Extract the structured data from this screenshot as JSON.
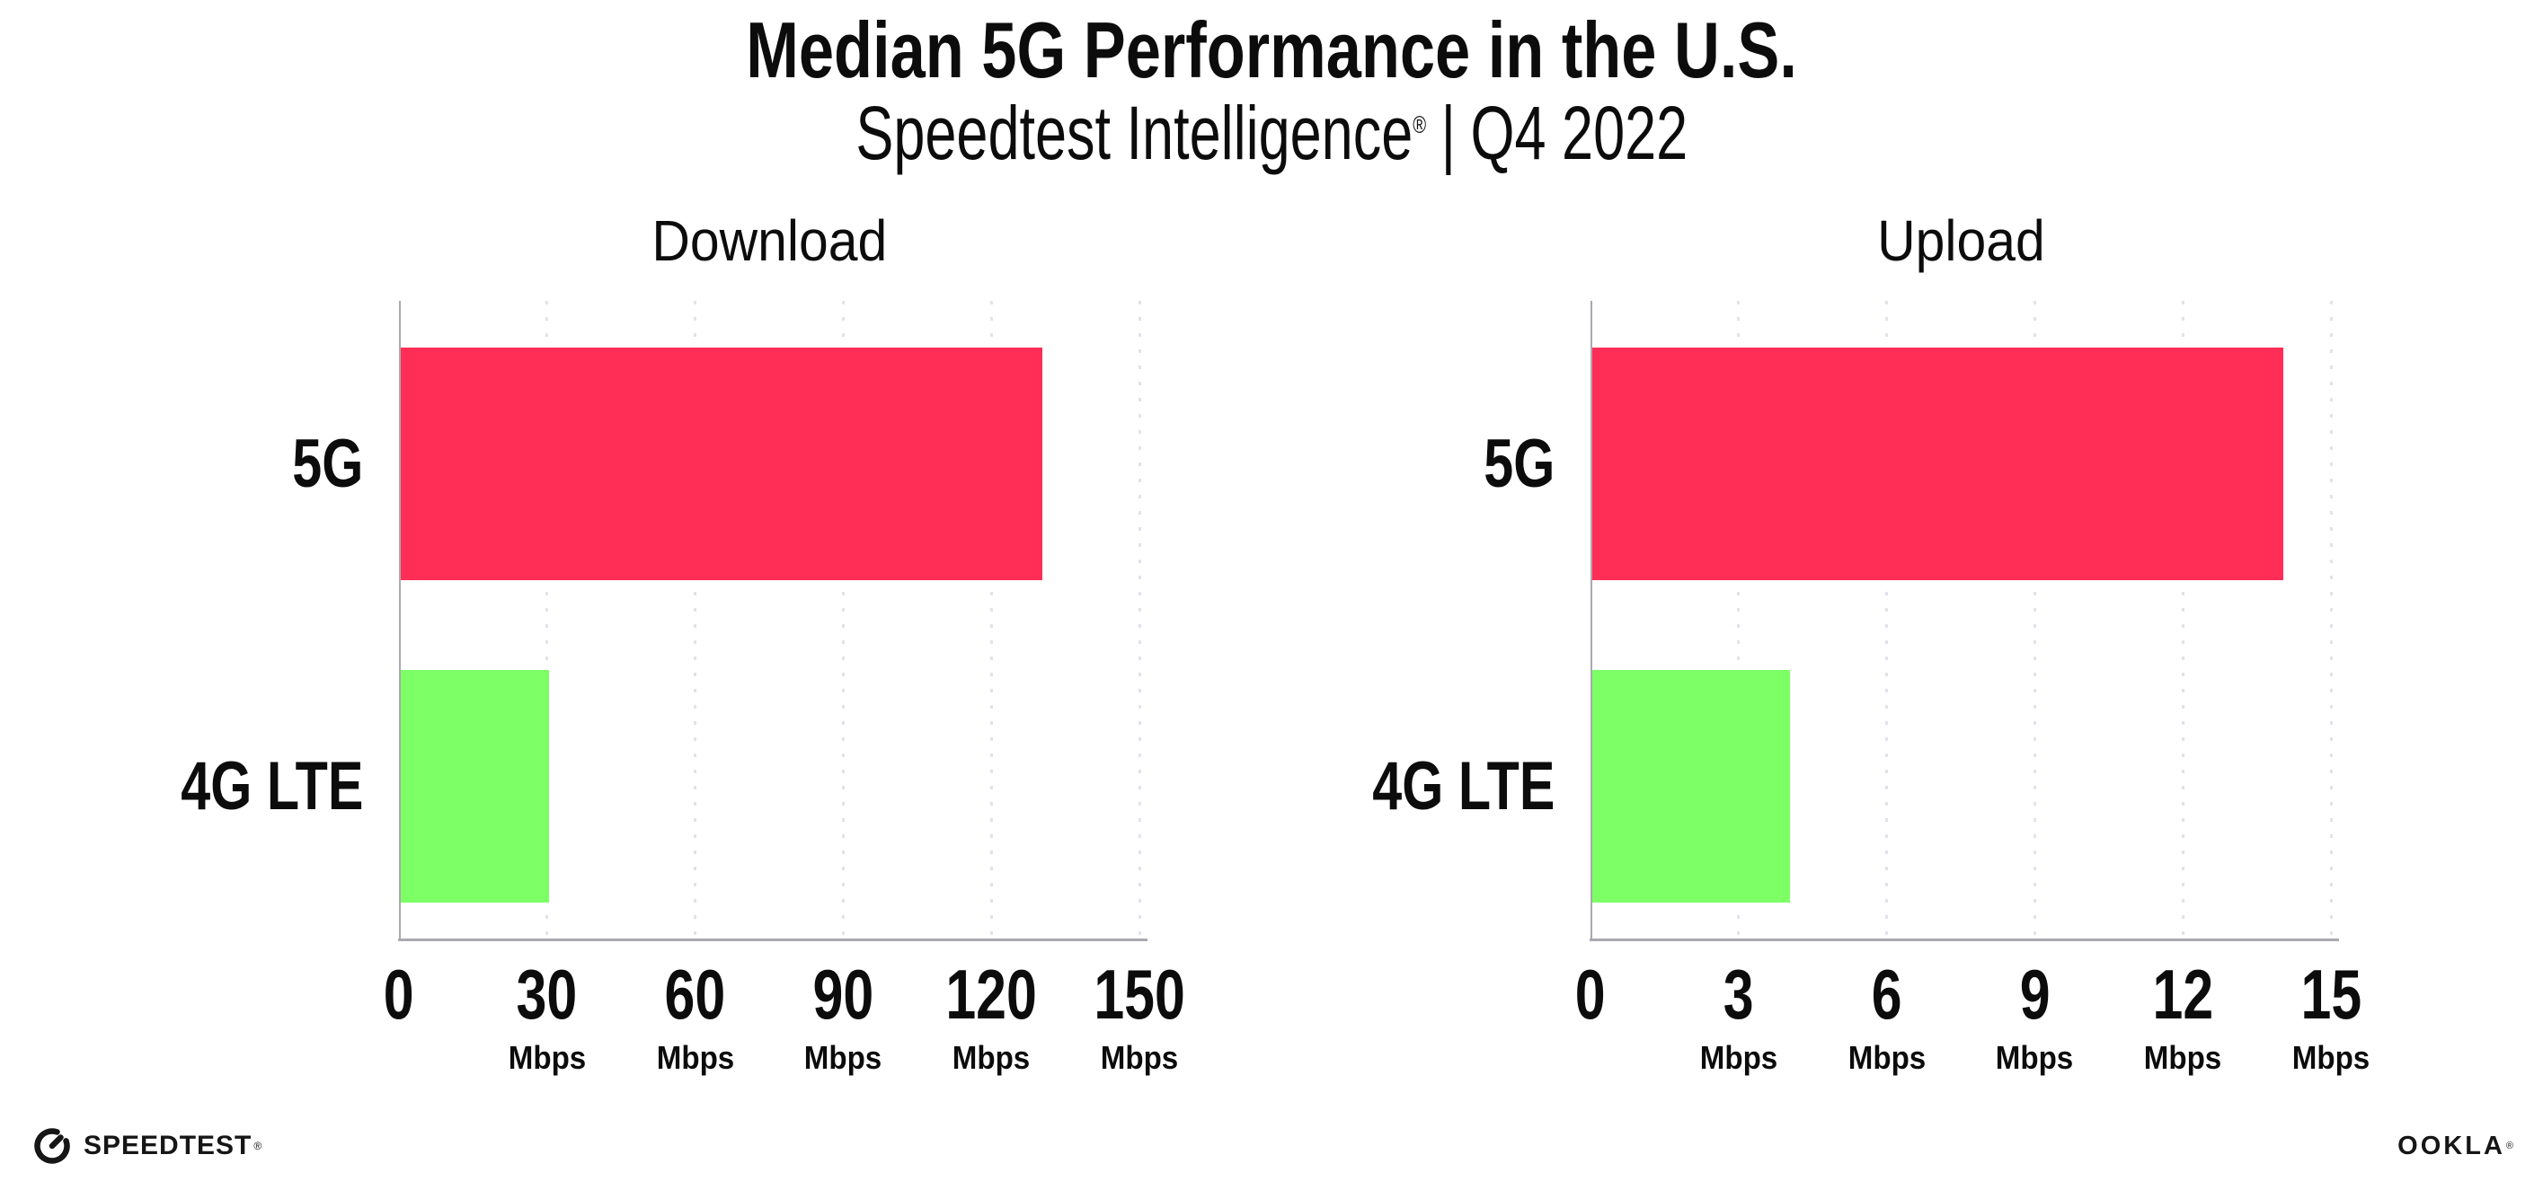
{
  "header": {
    "title": "Median 5G Performance in the U.S.",
    "subtitle_product": "Speedtest Intelligence",
    "subtitle_registered_mark": "®",
    "subtitle_separator": "|",
    "subtitle_period": "Q4 2022"
  },
  "chart_data": [
    {
      "type": "bar",
      "orientation": "horizontal",
      "title": "Download",
      "categories": [
        "5G",
        "4G LTE"
      ],
      "values": [
        130,
        30
      ],
      "unit": "Mbps",
      "xlim": [
        0,
        150
      ],
      "xticks": [
        0,
        30,
        60,
        90,
        120,
        150
      ],
      "tick_unit": "Mbps",
      "bar_colors": [
        "#ff2e56",
        "#7dff66"
      ],
      "grid": "vertical-dotted",
      "legend": "none"
    },
    {
      "type": "bar",
      "orientation": "horizontal",
      "title": "Upload",
      "categories": [
        "5G",
        "4G LTE"
      ],
      "values": [
        14,
        4
      ],
      "unit": "Mbps",
      "xlim": [
        0,
        15
      ],
      "xticks": [
        0,
        3,
        6,
        9,
        12,
        15
      ],
      "tick_unit": "Mbps",
      "bar_colors": [
        "#ff2e56",
        "#7dff66"
      ],
      "grid": "vertical-dotted",
      "legend": "none"
    }
  ],
  "footer": {
    "speedtest_icon": "gauge-icon",
    "speedtest_logo_text": "SPEEDTEST",
    "speedtest_trademark": "®",
    "ookla_logo_text": "OOKLA",
    "ookla_trademark": "®"
  },
  "colors": {
    "bar_5g": "#ff2e56",
    "bar_4g_lte": "#7dff66",
    "axis": "#a9a9b0",
    "gridline": "#e2e2ec",
    "text": "#0c0c0c",
    "background": "#ffffff"
  }
}
